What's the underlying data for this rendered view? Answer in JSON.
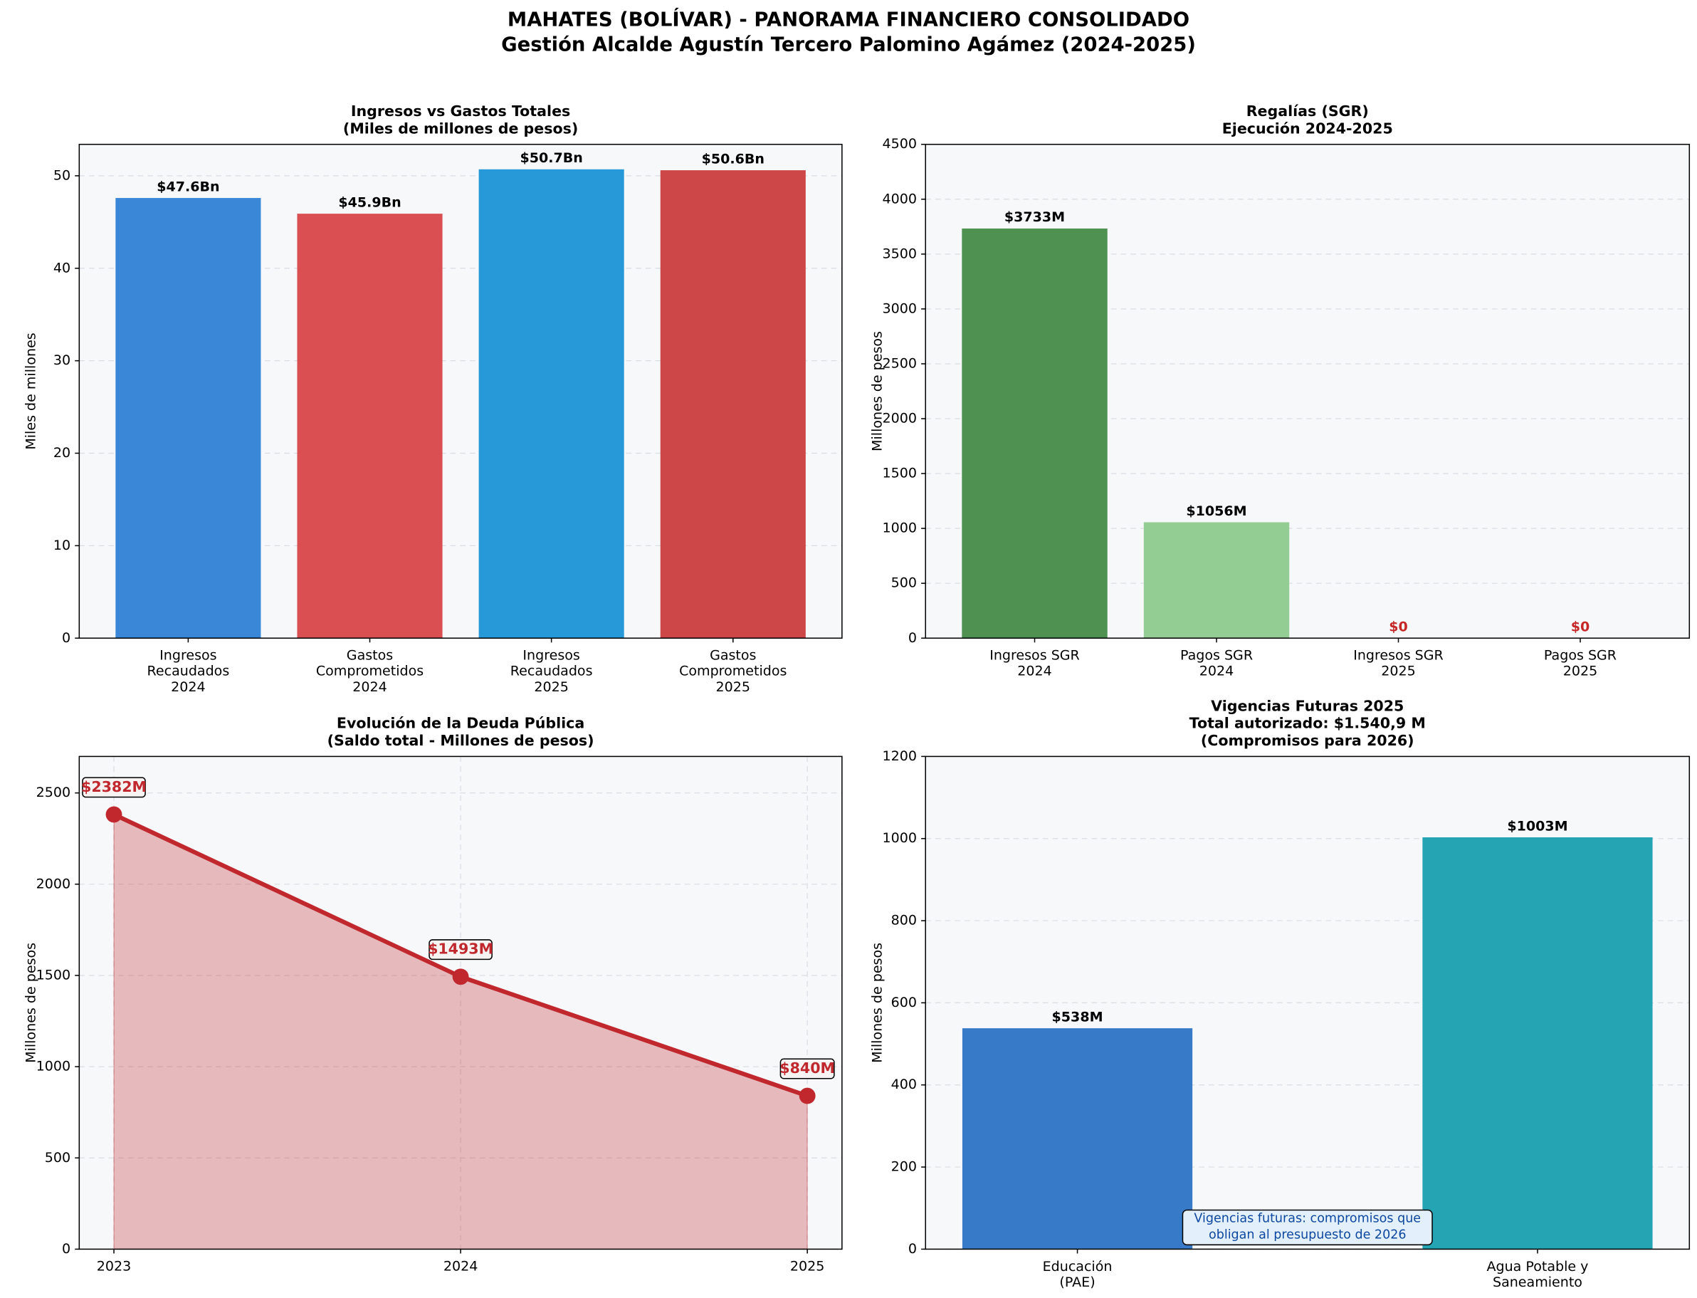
{
  "title": [
    "MAHATES (BOLÍVAR) - PANORAMA FINANCIERO CONSOLIDADO",
    "Gestión Alcalde Agustín Tercero Palomino Agámez (2024-2025)"
  ],
  "chart_data": [
    {
      "type": "bar",
      "title": [
        "Ingresos vs Gastos Totales",
        "(Miles de millones de pesos)"
      ],
      "ylabel": "Miles de millones",
      "categories": [
        "Ingresos\nRecaudados\n2024",
        "Gastos\nComprometidos\n2024",
        "Ingresos\nRecaudados\n2025",
        "Gastos\nComprometidos\n2025"
      ],
      "values": [
        47.6,
        45.9,
        50.7,
        50.6
      ],
      "value_labels": [
        "$47.6Bn",
        "$45.9Bn",
        "$50.7Bn",
        "$50.6Bn"
      ],
      "colors": [
        "#3a87d8",
        "#d94f52",
        "#2899d8",
        "#cd4749"
      ],
      "label_colors": [
        "#000000",
        "#000000",
        "#000000",
        "#000000"
      ],
      "ylim": [
        0,
        53.4
      ],
      "yticks": [
        0,
        10,
        20,
        30,
        40,
        50
      ],
      "grid": true
    },
    {
      "type": "bar",
      "title": [
        "Regalías (SGR)",
        "Ejecución 2024-2025"
      ],
      "ylabel": "Millones de pesos",
      "categories": [
        "Ingresos SGR\n2024",
        "Pagos SGR\n2024",
        "Ingresos SGR\n2025",
        "Pagos SGR\n2025"
      ],
      "values": [
        3733,
        1056,
        0,
        0
      ],
      "value_labels": [
        "$3733M",
        "$1056M",
        "$0",
        "$0"
      ],
      "colors": [
        "#4e9150",
        "#94cd94",
        "#d62728",
        "#d62728"
      ],
      "label_colors": [
        "#000000",
        "#000000",
        "#c62828",
        "#c62828"
      ],
      "ylim": [
        0,
        4500
      ],
      "yticks": [
        0,
        500,
        1000,
        1500,
        2000,
        2500,
        3000,
        3500,
        4000,
        4500
      ],
      "grid": true
    },
    {
      "type": "line",
      "title": [
        "Evolución de la Deuda Pública",
        "(Saldo total - Millones de pesos)"
      ],
      "ylabel": "Millones de pesos",
      "x": [
        2023,
        2024,
        2025
      ],
      "values": [
        2382,
        1493,
        840
      ],
      "value_labels": [
        "$2382M",
        "$1493M",
        "$840M"
      ],
      "color": "#c0282d",
      "xlim": [
        2022.9,
        2025.1
      ],
      "xticks": [
        2023,
        2024,
        2025
      ],
      "ylim": [
        0,
        2700
      ],
      "yticks": [
        0,
        500,
        1000,
        1500,
        2000,
        2500
      ],
      "grid": true
    },
    {
      "type": "bar",
      "title": [
        "Vigencias Futuras 2025",
        "Total autorizado: $1.540,9 M",
        "(Compromisos para 2026)"
      ],
      "ylabel": "Millones de pesos",
      "categories": [
        "Educación\n(PAE)",
        "Agua Potable y\nSaneamiento"
      ],
      "values": [
        538,
        1003
      ],
      "value_labels": [
        "$538M",
        "$1003M"
      ],
      "colors": [
        "#377bc8",
        "#25a5b4"
      ],
      "label_colors": [
        "#000000",
        "#000000"
      ],
      "ylim": [
        0,
        1200
      ],
      "yticks": [
        0,
        200,
        400,
        600,
        800,
        1000,
        1200
      ],
      "grid": true,
      "annotation": "Vigencias futuras: compromisos que\nobligan al presupuesto de 2026"
    }
  ]
}
